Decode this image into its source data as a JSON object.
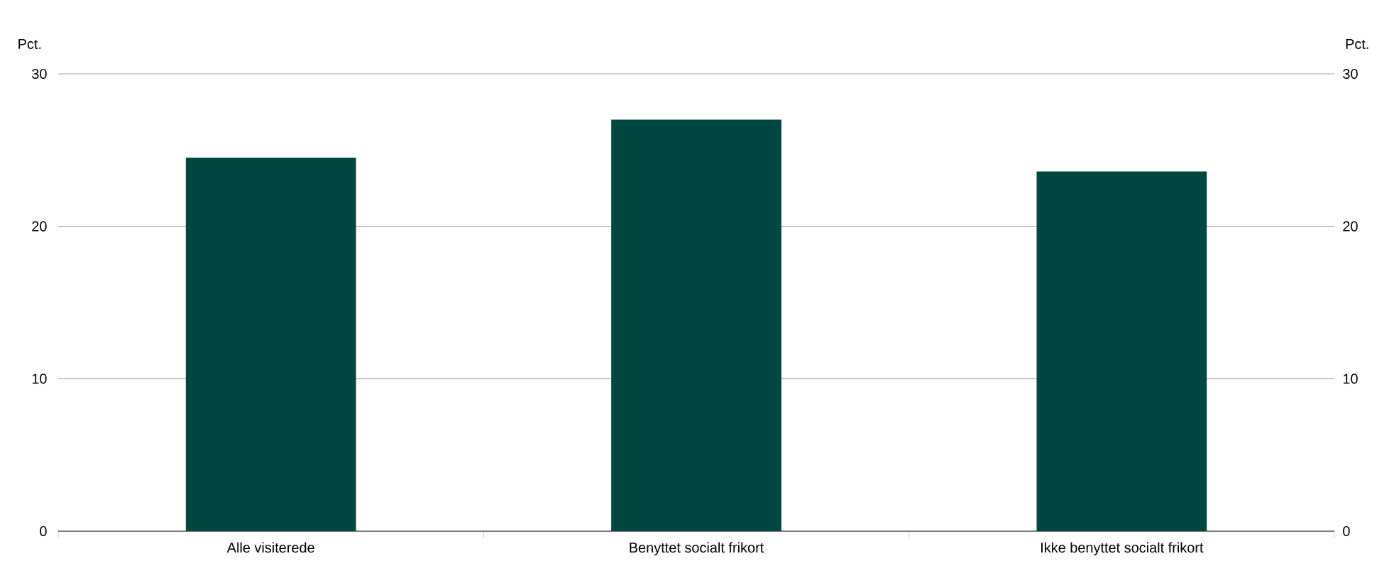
{
  "chart_data": {
    "type": "bar",
    "ylabel": "Pct.",
    "y2label": "Pct.",
    "categories": [
      "Alle visiterede",
      "Benyttet socialt frikort",
      "Ikke benyttet socialt frikort"
    ],
    "values": [
      24.5,
      27.0,
      23.6
    ],
    "color": "#004741",
    "ylim": [
      0,
      30
    ],
    "yticks": [
      0,
      10,
      20,
      30
    ],
    "y2lim": [
      0,
      30
    ],
    "y2ticks": [
      0,
      10,
      20,
      30
    ],
    "grid": "y"
  }
}
